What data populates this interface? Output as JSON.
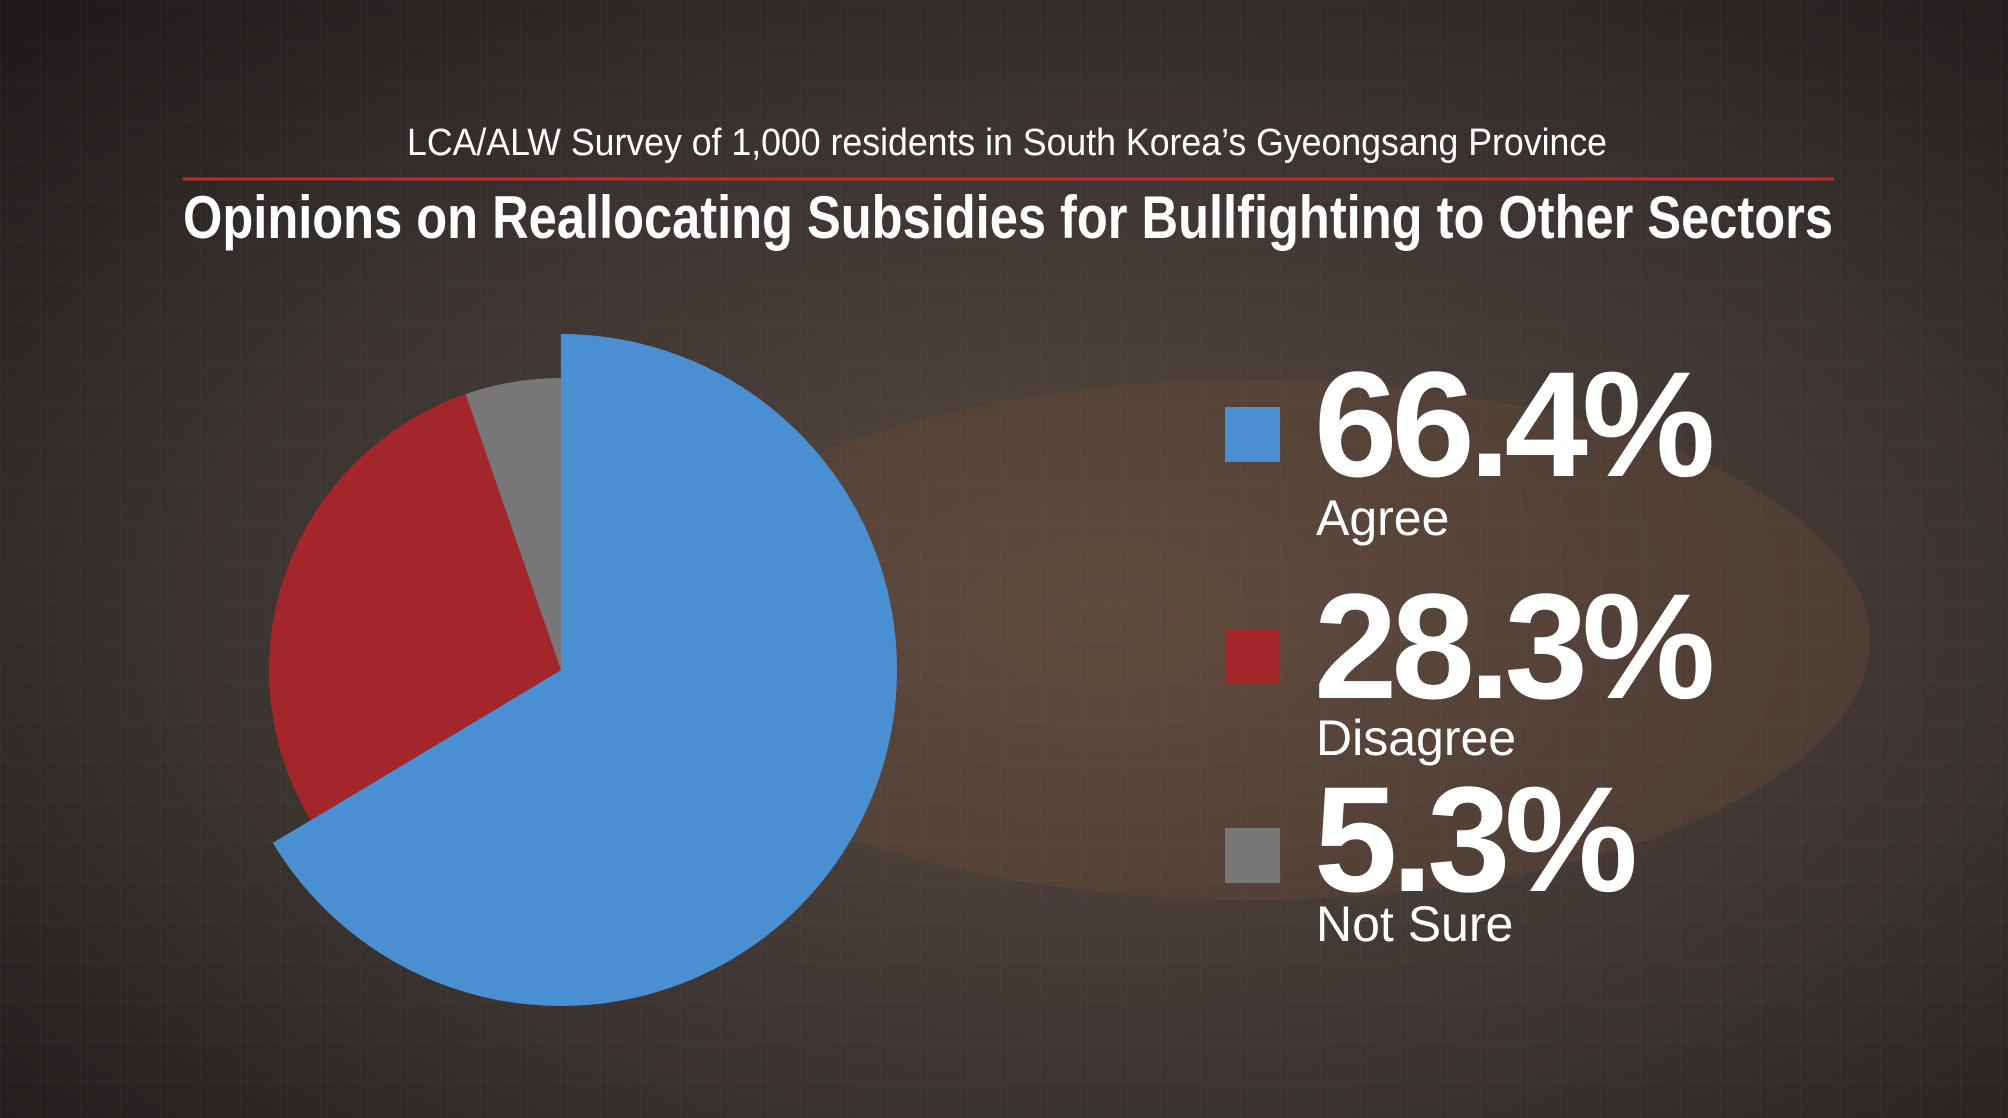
{
  "chart_data": {
    "type": "pie",
    "subtitle": "LCA/ALW Survey of 1,000 residents in South Korea’s Gyeongsang Province",
    "title": "Opinions on Reallocating Subsidies for Bullfighting to Other Sectors",
    "categories": [
      "Agree",
      "Disagree",
      "Not Sure"
    ],
    "values": [
      66.4,
      28.3,
      5.3
    ],
    "value_labels": [
      "66.4%",
      "28.3%",
      "5.3%"
    ],
    "colors": [
      "#4a8fd2",
      "#a3262b",
      "#777777"
    ]
  }
}
